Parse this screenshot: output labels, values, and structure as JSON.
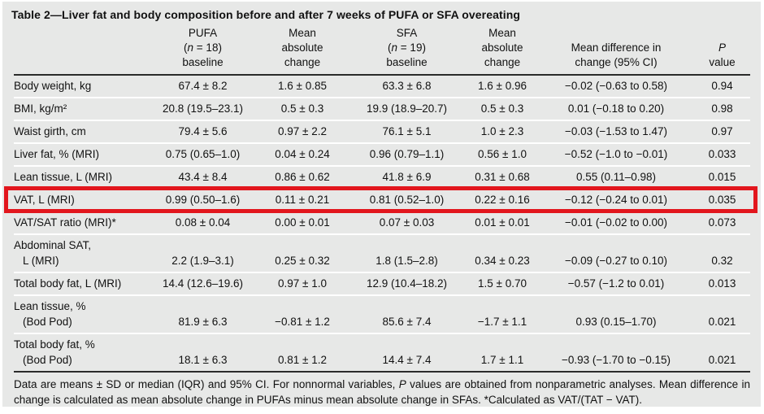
{
  "title": "Table 2—Liver fat and body composition before and after 7 weeks of PUFA or SFA overeating",
  "header": {
    "pufa": {
      "line1": "PUFA",
      "n_pre": "(",
      "n_italic": "n",
      "n_post": " = 18)",
      "line3": "baseline"
    },
    "mean_change_pufa": {
      "line1": "Mean",
      "line2": "absolute",
      "line3": "change"
    },
    "sfa": {
      "line1": "SFA",
      "n_pre": "(",
      "n_italic": "n",
      "n_post": " = 19)",
      "line3": "baseline"
    },
    "mean_change_sfa": {
      "line1": "Mean",
      "line2": "absolute",
      "line3": "change"
    },
    "mean_diff": {
      "line1": "Mean difference in",
      "line2": "change (95% CI)"
    },
    "p_value": {
      "line1": "P",
      "line2": "value"
    }
  },
  "table": {
    "rows": [
      {
        "label": "Body weight, kg",
        "values": [
          "67.4 ± 8.2",
          "1.6 ± 0.85",
          "63.3 ± 6.8",
          "1.6 ± 0.96",
          "−0.02 (−0.63 to 0.58)",
          "0.94"
        ]
      },
      {
        "label": "BMI, kg/m²",
        "values": [
          "20.8 (19.5–23.1)",
          "0.5 ± 0.3",
          "19.9 (18.9–20.7)",
          "0.5 ± 0.3",
          "0.01 (−0.18 to 0.20)",
          "0.98"
        ]
      },
      {
        "label": "Waist girth, cm",
        "values": [
          "79.4 ± 5.6",
          "0.97 ± 2.2",
          "76.1 ± 5.1",
          "1.0 ± 2.3",
          "−0.03 (−1.53 to 1.47)",
          "0.97"
        ]
      },
      {
        "label": "Liver fat, % (MRI)",
        "values": [
          "0.75 (0.65–1.0)",
          "0.04 ± 0.24",
          "0.96 (0.79–1.1)",
          "0.56 ± 1.0",
          "−0.52 (−1.0 to −0.01)",
          "0.033"
        ]
      },
      {
        "label": "Lean tissue, L (MRI)",
        "values": [
          "43.4 ± 8.4",
          "0.86 ± 0.62",
          "41.8 ± 6.9",
          "0.31 ± 0.68",
          "0.55 (0.11–0.98)",
          "0.015"
        ]
      },
      {
        "label": "VAT, L (MRI)",
        "highlighted": true,
        "values": [
          "0.99 (0.50–1.6)",
          "0.11 ± 0.21",
          "0.81 (0.52–1.0)",
          "0.22 ± 0.16",
          "−0.12 (−0.24 to 0.01)",
          "0.035"
        ]
      },
      {
        "label": "VAT/SAT ratio (MRI)*",
        "values": [
          "0.08 ± 0.04",
          "0.00 ± 0.01",
          "0.07 ± 0.03",
          "0.01 ± 0.01",
          "−0.01 (−0.02 to 0.00)",
          "0.073"
        ]
      },
      {
        "label": "Abdominal SAT,",
        "label2": "L (MRI)",
        "values": [
          "2.2 (1.9–3.1)",
          "0.25 ± 0.32",
          "1.8 (1.5–2.8)",
          "0.34 ± 0.23",
          "−0.09 (−0.27 to 0.10)",
          "0.32"
        ]
      },
      {
        "label": "Total body fat, L (MRI)",
        "values": [
          "14.4 (12.6–19.6)",
          "0.97 ± 1.0",
          "12.9 (10.4–18.2)",
          "1.5 ± 0.70",
          "−0.57 (−1.2 to 0.01)",
          "0.013"
        ]
      },
      {
        "label": "Lean tissue, %",
        "label2": "(Bod Pod)",
        "values": [
          "81.9 ± 6.3",
          "−0.81 ± 1.2",
          "85.6 ± 7.4",
          "−1.7 ± 1.1",
          "0.93 (0.15–1.70)",
          "0.021"
        ]
      },
      {
        "label": "Total body fat, %",
        "label2": "(Bod Pod)",
        "values": [
          "18.1 ± 6.3",
          "0.81 ± 1.2",
          "14.4 ± 7.4",
          "1.7 ± 1.1",
          "−0.93 (−1.70 to −0.15)",
          "0.021"
        ]
      }
    ]
  },
  "footnote": {
    "part1": "Data are means ± SD or median (IQR) and 95% CI. For nonnormal variables, ",
    "p_italic": "P",
    "part2": " values are obtained from nonparametric analyses. Mean difference in change is calculated as mean absolute change in PUFAs minus mean absolute change in SFAs. *Calculated as VAT/(TAT − VAT)."
  },
  "annotation": {
    "highlight_color": "#e2161d",
    "highlighted_row": "VAT, L (MRI)"
  }
}
